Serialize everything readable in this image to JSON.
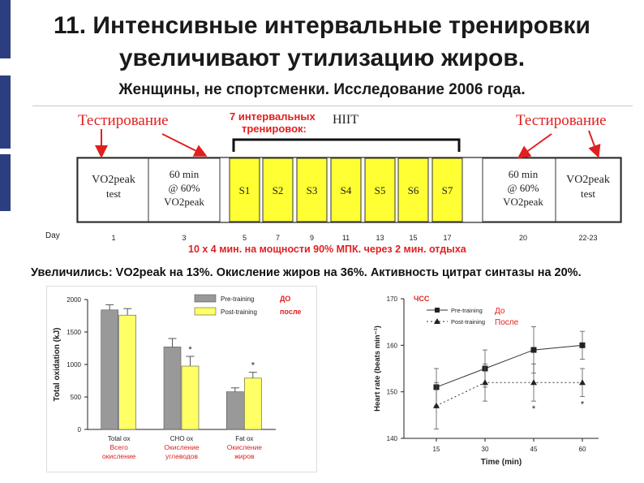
{
  "slide": {
    "title_line1": "11.  Интенсивные интервальные тренировки",
    "title_line2": "увеличивают утилизацию жиров.",
    "subtitle": "Женщины, не спортсменки. Исследование 2006 года.",
    "conclusion": "Увеличились: VO2peak на 13%. Окисление жиров на 36%. Активность цитрат синтазы на 20%.",
    "accent_color": "#e02020",
    "sidebar_color": "#2b3f80"
  },
  "timeline": {
    "label_testing_left": "Тестирование",
    "label_testing_right": "Тестирование",
    "label_sessions": "7 интервальных тренировок:",
    "label_sessions_line1": "7 интервальных",
    "label_sessions_line2": "тренировок:",
    "label_hiit": "HIIT",
    "protocol_note": "10 x 4 мин. на мощности 90% МПК. через 2 мин. отдыха",
    "day_label": "Day",
    "boxes": [
      {
        "line1": "VO2peak",
        "line2": "test",
        "day": "1"
      },
      {
        "line1": "60 min",
        "line2": "@ 60%",
        "line3": "VO2peak",
        "day": "3"
      },
      {
        "session": "S1",
        "day": "5"
      },
      {
        "session": "S2",
        "day": "7"
      },
      {
        "session": "S3",
        "day": "9"
      },
      {
        "session": "S4",
        "day": "11"
      },
      {
        "session": "S5",
        "day": "13"
      },
      {
        "session": "S6",
        "day": "15"
      },
      {
        "session": "S7",
        "day": "17"
      },
      {
        "line1": "60 min",
        "line2": "@ 60%",
        "line3": "VO2peak",
        "day": "20"
      },
      {
        "line1": "VO2peak",
        "line2": "test",
        "day": "22-23"
      }
    ],
    "session_color": "#ffff33"
  },
  "chart_data": [
    {
      "type": "bar",
      "ylabel": "Total oxidation (kJ)",
      "ylim": [
        0,
        2000
      ],
      "yticks": [
        0,
        500,
        1000,
        1500,
        2000
      ],
      "categories": [
        "Total ox",
        "CHO ox",
        "Fat ox"
      ],
      "category_translations": [
        "Всего окисление",
        "Окисление углеводов",
        "Окисление жиров"
      ],
      "series": [
        {
          "name": "Pre-training",
          "name_ru": "ДО",
          "color": "#999999",
          "values": [
            1840,
            1270,
            580
          ],
          "errors": [
            80,
            130,
            60
          ]
        },
        {
          "name": "Post-training",
          "name_ru": "после",
          "color": "#ffff66",
          "values": [
            1760,
            975,
            790
          ],
          "errors": [
            100,
            150,
            90
          ]
        }
      ],
      "annotations": [
        {
          "category": "CHO ox",
          "series": "Post-training",
          "text": "*"
        },
        {
          "category": "Fat ox",
          "series": "Post-training",
          "text": "*"
        }
      ],
      "legend": "top-right"
    },
    {
      "type": "line",
      "title": "ЧСС",
      "xlabel": "Time (min)",
      "ylabel": "Heart rate (beats min⁻¹)",
      "x": [
        15,
        30,
        45,
        60
      ],
      "ylim": [
        140,
        170
      ],
      "yticks": [
        140,
        150,
        160,
        170
      ],
      "series": [
        {
          "name": "Pre-training",
          "name_ru": "До",
          "marker": "square",
          "values": [
            151,
            155,
            159,
            160
          ],
          "errors": [
            4,
            4,
            5,
            3
          ]
        },
        {
          "name": "Post-training",
          "name_ru": "После",
          "marker": "triangle",
          "values": [
            147,
            152,
            152,
            152
          ],
          "errors": [
            5,
            4,
            4,
            3
          ]
        }
      ],
      "annotations": [
        {
          "x": 45,
          "series": "Post-training",
          "text": "*"
        },
        {
          "x": 60,
          "series": "Post-training",
          "text": "*"
        }
      ],
      "legend": "top-left"
    }
  ]
}
